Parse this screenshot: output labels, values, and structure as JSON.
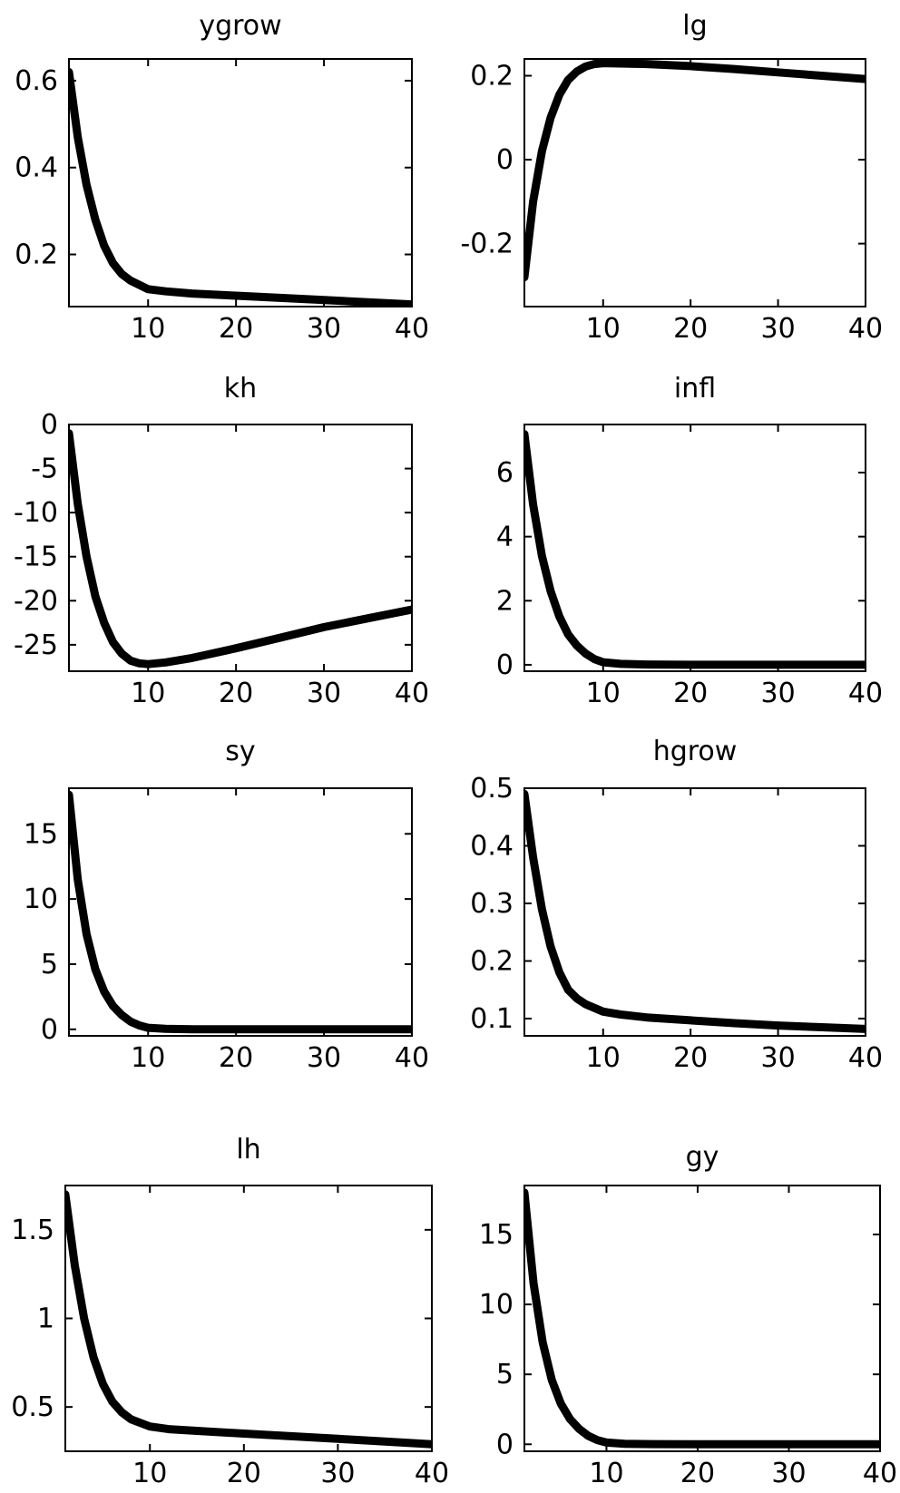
{
  "chart_data": [
    {
      "type": "line",
      "title": "ygrow",
      "xlim": [
        1,
        40
      ],
      "ylim": [
        0.08,
        0.65
      ],
      "xticks": [
        10,
        20,
        30,
        40
      ],
      "yticks": [
        0.2,
        0.4,
        0.6
      ],
      "xtick_labels": [
        "10",
        "20",
        "30",
        "40"
      ],
      "ytick_labels": [
        "0.2",
        "0.4",
        "0.6"
      ],
      "grid": false,
      "series": [
        {
          "x": [
            1,
            2,
            3,
            4,
            5,
            6,
            7,
            8,
            10,
            12,
            15,
            20,
            25,
            30,
            35,
            40
          ],
          "y": [
            0.62,
            0.47,
            0.36,
            0.28,
            0.22,
            0.18,
            0.155,
            0.14,
            0.12,
            0.115,
            0.11,
            0.105,
            0.1,
            0.095,
            0.09,
            0.085
          ]
        }
      ]
    },
    {
      "type": "line",
      "title": "lg",
      "xlim": [
        1,
        40
      ],
      "ylim": [
        -0.35,
        0.24
      ],
      "xticks": [
        10,
        20,
        30,
        40
      ],
      "yticks": [
        -0.2,
        0,
        0.2
      ],
      "xtick_labels": [
        "10",
        "20",
        "30",
        "40"
      ],
      "ytick_labels": [
        "-0.2",
        "0",
        "0.2"
      ],
      "grid": false,
      "series": [
        {
          "x": [
            1,
            2,
            3,
            4,
            5,
            6,
            7,
            8,
            9,
            10,
            15,
            20,
            25,
            30,
            35,
            40
          ],
          "y": [
            -0.28,
            -0.1,
            0.02,
            0.1,
            0.155,
            0.19,
            0.21,
            0.222,
            0.228,
            0.23,
            0.228,
            0.223,
            0.216,
            0.208,
            0.2,
            0.192
          ]
        }
      ]
    },
    {
      "type": "line",
      "title": "kh",
      "xlim": [
        1,
        40
      ],
      "ylim": [
        -28,
        0
      ],
      "xticks": [
        10,
        20,
        30,
        40
      ],
      "yticks": [
        0,
        -5,
        -10,
        -15,
        -20,
        -25
      ],
      "xtick_labels": [
        "10",
        "20",
        "30",
        "40"
      ],
      "ytick_labels": [
        "0",
        "-5",
        "-10",
        "-15",
        "-20",
        "-25"
      ],
      "grid": false,
      "series": [
        {
          "x": [
            1,
            2,
            3,
            4,
            5,
            6,
            7,
            8,
            9,
            10,
            12,
            15,
            20,
            25,
            30,
            35,
            40
          ],
          "y": [
            -1,
            -9,
            -15,
            -19.5,
            -22.5,
            -24.7,
            -26,
            -26.8,
            -27.1,
            -27.2,
            -27,
            -26.5,
            -25.4,
            -24.2,
            -23,
            -22,
            -21
          ]
        }
      ]
    },
    {
      "type": "line",
      "title": "infl",
      "xlim": [
        1,
        40
      ],
      "ylim": [
        -0.2,
        7.5
      ],
      "xticks": [
        10,
        20,
        30,
        40
      ],
      "yticks": [
        0,
        2,
        4,
        6
      ],
      "xtick_labels": [
        "10",
        "20",
        "30",
        "40"
      ],
      "ytick_labels": [
        "0",
        "2",
        "4",
        "6"
      ],
      "grid": false,
      "series": [
        {
          "x": [
            1,
            2,
            3,
            4,
            5,
            6,
            7,
            8,
            9,
            10,
            12,
            15,
            20,
            30,
            40
          ],
          "y": [
            7.2,
            5.0,
            3.4,
            2.3,
            1.5,
            0.95,
            0.6,
            0.35,
            0.18,
            0.08,
            0.03,
            0.01,
            0,
            0,
            0
          ]
        }
      ]
    },
    {
      "type": "line",
      "title": "sy",
      "xlim": [
        1,
        40
      ],
      "ylim": [
        -0.5,
        18.5
      ],
      "xticks": [
        10,
        20,
        30,
        40
      ],
      "yticks": [
        0,
        5,
        10,
        15
      ],
      "xtick_labels": [
        "10",
        "20",
        "30",
        "40"
      ],
      "ytick_labels": [
        "0",
        "5",
        "10",
        "15"
      ],
      "grid": false,
      "series": [
        {
          "x": [
            1,
            2,
            3,
            4,
            5,
            6,
            7,
            8,
            9,
            10,
            12,
            15,
            20,
            30,
            40
          ],
          "y": [
            18,
            11.5,
            7.3,
            4.6,
            2.9,
            1.8,
            1.1,
            0.6,
            0.3,
            0.12,
            0.04,
            0.01,
            0,
            0,
            0
          ]
        }
      ]
    },
    {
      "type": "line",
      "title": "hgrow",
      "xlim": [
        1,
        40
      ],
      "ylim": [
        0.07,
        0.5
      ],
      "xticks": [
        10,
        20,
        30,
        40
      ],
      "yticks": [
        0.1,
        0.2,
        0.3,
        0.4,
        0.5
      ],
      "xtick_labels": [
        "10",
        "20",
        "30",
        "40"
      ],
      "ytick_labels": [
        "0.1",
        "0.2",
        "0.3",
        "0.4",
        "0.5"
      ],
      "grid": false,
      "series": [
        {
          "x": [
            1,
            2,
            3,
            4,
            5,
            6,
            7,
            8,
            10,
            12,
            15,
            20,
            25,
            30,
            35,
            40
          ],
          "y": [
            0.49,
            0.38,
            0.29,
            0.225,
            0.18,
            0.15,
            0.135,
            0.125,
            0.112,
            0.107,
            0.102,
            0.097,
            0.092,
            0.088,
            0.085,
            0.082
          ]
        }
      ]
    },
    {
      "type": "line",
      "title": "lh",
      "xlim": [
        1,
        40
      ],
      "ylim": [
        0.25,
        1.75
      ],
      "xticks": [
        10,
        20,
        30,
        40
      ],
      "yticks": [
        0.5,
        1,
        1.5
      ],
      "xtick_labels": [
        "10",
        "20",
        "30",
        "40"
      ],
      "ytick_labels": [
        "0.5",
        "1",
        "1.5"
      ],
      "grid": false,
      "series": [
        {
          "x": [
            1,
            2,
            3,
            4,
            5,
            6,
            7,
            8,
            10,
            12,
            15,
            20,
            25,
            30,
            35,
            40
          ],
          "y": [
            1.7,
            1.3,
            1.0,
            0.78,
            0.63,
            0.53,
            0.47,
            0.43,
            0.39,
            0.375,
            0.365,
            0.35,
            0.335,
            0.32,
            0.305,
            0.29
          ]
        }
      ]
    },
    {
      "type": "line",
      "title": "gy",
      "xlim": [
        1,
        40
      ],
      "ylim": [
        -0.5,
        18.5
      ],
      "xticks": [
        10,
        20,
        30,
        40
      ],
      "yticks": [
        0,
        5,
        10,
        15
      ],
      "xtick_labels": [
        "10",
        "20",
        "30",
        "40"
      ],
      "ytick_labels": [
        "0",
        "5",
        "10",
        "15"
      ],
      "grid": false,
      "series": [
        {
          "x": [
            1,
            2,
            3,
            4,
            5,
            6,
            7,
            8,
            9,
            10,
            12,
            15,
            20,
            30,
            40
          ],
          "y": [
            18,
            11.5,
            7.3,
            4.6,
            2.9,
            1.8,
            1.1,
            0.6,
            0.3,
            0.12,
            0.04,
            0.01,
            0,
            0,
            0
          ]
        }
      ]
    }
  ]
}
